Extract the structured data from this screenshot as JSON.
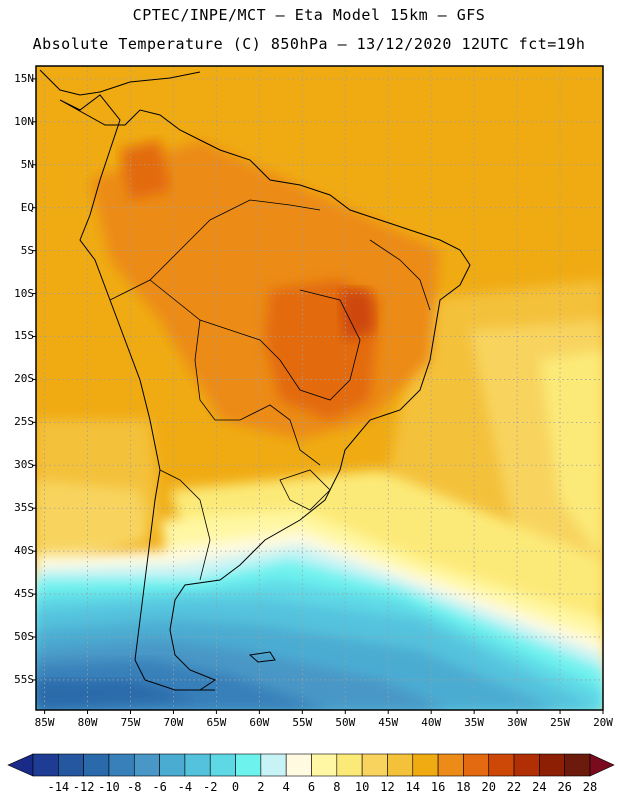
{
  "header": {
    "line1": "CPTEC/INPE/MCT –  Eta Model 15km – GFS",
    "line2": "Absolute Temperature (C) 850hPa – 13/12/2020 12UTC fct=19h"
  },
  "axes": {
    "lat_labels": [
      "15N",
      "10N",
      "5N",
      "EQ",
      "5S",
      "10S",
      "15S",
      "20S",
      "25S",
      "30S",
      "35S",
      "40S",
      "45S",
      "50S",
      "55S"
    ],
    "lon_labels": [
      "85W",
      "80W",
      "75W",
      "70W",
      "65W",
      "60W",
      "55W",
      "50W",
      "45W",
      "40W",
      "35W",
      "30W",
      "25W",
      "20W"
    ]
  },
  "colorbar": {
    "labels": [
      "-14",
      "-12",
      "-10",
      "-8",
      "-6",
      "-4",
      "-2",
      "0",
      "2",
      "4",
      "6",
      "8",
      "10",
      "12",
      "14",
      "16",
      "18",
      "20",
      "22",
      "24",
      "26",
      "28"
    ],
    "colors": [
      "#1e3c94",
      "#24579f",
      "#2b6aaa",
      "#3880ba",
      "#4897c6",
      "#4bacd2",
      "#54c2dd",
      "#5fd8e6",
      "#6ef2ee",
      "#c8f3f6",
      "#fffae0",
      "#fff7a3",
      "#fcea78",
      "#f8d45e",
      "#f4c13a",
      "#f0ab13",
      "#ec8b18",
      "#e36a10",
      "#cd4707",
      "#b02f05",
      "#8c1f04",
      "#6c1a0c"
    ],
    "under_color": "#1a2a88",
    "over_color": "#7a0a1e"
  }
}
